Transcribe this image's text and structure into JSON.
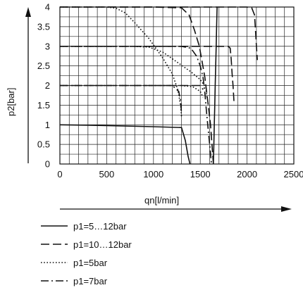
{
  "chart_data": {
    "type": "line",
    "title": "",
    "xlabel": "qn[l/min]",
    "ylabel": "p2[bar]",
    "xlim": [
      0,
      2500
    ],
    "ylim": [
      0,
      4
    ],
    "x_ticks": [
      "0",
      "500",
      "1000",
      "1500",
      "2000",
      "2500"
    ],
    "y_ticks": [
      "0",
      "0.5",
      "1",
      "1.5",
      "2",
      "2.5",
      "3",
      "3.5",
      "4"
    ],
    "grid": true,
    "legend_position": "bottom-left",
    "series": [
      {
        "name": "p1=5…12bar",
        "style": "solid",
        "curves": [
          [
            [
              0,
              1.0
            ],
            [
              500,
              0.98
            ],
            [
              1000,
              0.95
            ],
            [
              1300,
              0.93
            ],
            [
              1340,
              0.6
            ],
            [
              1370,
              0.2
            ],
            [
              1390,
              0.0
            ]
          ],
          [
            [
              1640,
              0.0
            ],
            [
              1645,
              0.5
            ],
            [
              1650,
              1.0
            ],
            [
              1655,
              1.5
            ],
            [
              1660,
              2.0
            ],
            [
              1665,
              2.5
            ],
            [
              1670,
              3.0
            ],
            [
              1675,
              3.5
            ],
            [
              1680,
              4.0
            ]
          ]
        ]
      },
      {
        "name": "p1=10…12bar",
        "style": "dashed",
        "curves": [
          [
            [
              0,
              4.0
            ],
            [
              500,
              4.0
            ],
            [
              1000,
              4.0
            ],
            [
              1500,
              4.0
            ],
            [
              2000,
              4.0
            ],
            [
              2050,
              3.98
            ],
            [
              2080,
              3.8
            ],
            [
              2090,
              3.4
            ],
            [
              2100,
              3.0
            ],
            [
              2110,
              2.65
            ]
          ],
          [
            [
              0,
              4.0
            ],
            [
              500,
              4.0
            ],
            [
              1000,
              4.0
            ],
            [
              1300,
              3.98
            ],
            [
              1380,
              3.8
            ],
            [
              1440,
              3.4
            ],
            [
              1490,
              3.0
            ],
            [
              1520,
              2.6
            ],
            [
              1550,
              2.2
            ],
            [
              1570,
              1.8
            ],
            [
              1590,
              1.4
            ],
            [
              1610,
              1.0
            ],
            [
              1625,
              0.5
            ],
            [
              1640,
              0.0
            ]
          ],
          [
            [
              0,
              3.0
            ],
            [
              500,
              3.0
            ],
            [
              1000,
              3.0
            ],
            [
              1500,
              3.0
            ],
            [
              1800,
              3.0
            ],
            [
              1820,
              2.95
            ],
            [
              1830,
              2.7
            ],
            [
              1840,
              2.3
            ],
            [
              1850,
              2.0
            ],
            [
              1860,
              1.6
            ]
          ],
          [
            [
              0,
              2.0
            ],
            [
              500,
              2.0
            ],
            [
              1000,
              2.0
            ],
            [
              1500,
              2.0
            ],
            [
              1530,
              1.9
            ]
          ]
        ]
      },
      {
        "name": "p1=5bar",
        "style": "dotted",
        "curves": [
          [
            [
              0,
              4.0
            ],
            [
              500,
              4.0
            ],
            [
              600,
              3.97
            ],
            [
              700,
              3.85
            ],
            [
              800,
              3.6
            ],
            [
              950,
              3.2
            ],
            [
              1100,
              2.7
            ],
            [
              1200,
              2.3
            ],
            [
              1260,
              1.9
            ],
            [
              1290,
              1.5
            ],
            [
              1300,
              1.2
            ]
          ],
          [
            [
              0,
              3.0
            ],
            [
              500,
              3.0
            ],
            [
              800,
              3.0
            ],
            [
              950,
              2.98
            ],
            [
              1100,
              2.85
            ],
            [
              1250,
              2.6
            ],
            [
              1400,
              2.35
            ],
            [
              1500,
              2.15
            ],
            [
              1560,
              1.95
            ],
            [
              1570,
              1.7
            ]
          ],
          [
            [
              0,
              2.0
            ],
            [
              500,
              2.0
            ],
            [
              1000,
              2.0
            ],
            [
              1300,
              2.0
            ],
            [
              1420,
              1.97
            ],
            [
              1500,
              1.85
            ],
            [
              1530,
              1.7
            ]
          ]
        ]
      },
      {
        "name": "p1=7bar",
        "style": "dashdot",
        "curves": [
          [
            [
              0,
              3.0
            ],
            [
              500,
              3.0
            ],
            [
              1000,
              3.0
            ],
            [
              1300,
              3.0
            ],
            [
              1400,
              2.95
            ],
            [
              1460,
              2.75
            ],
            [
              1500,
              2.5
            ],
            [
              1530,
              2.2
            ],
            [
              1550,
              1.8
            ],
            [
              1560,
              1.5
            ],
            [
              1580,
              1.0
            ],
            [
              1600,
              0.5
            ],
            [
              1620,
              0.0
            ]
          ],
          [
            [
              0,
              2.0
            ],
            [
              500,
              2.0
            ],
            [
              1000,
              2.0
            ],
            [
              1200,
              2.0
            ],
            [
              1270,
              1.85
            ],
            [
              1290,
              1.6
            ],
            [
              1300,
              1.3
            ]
          ]
        ]
      }
    ]
  }
}
